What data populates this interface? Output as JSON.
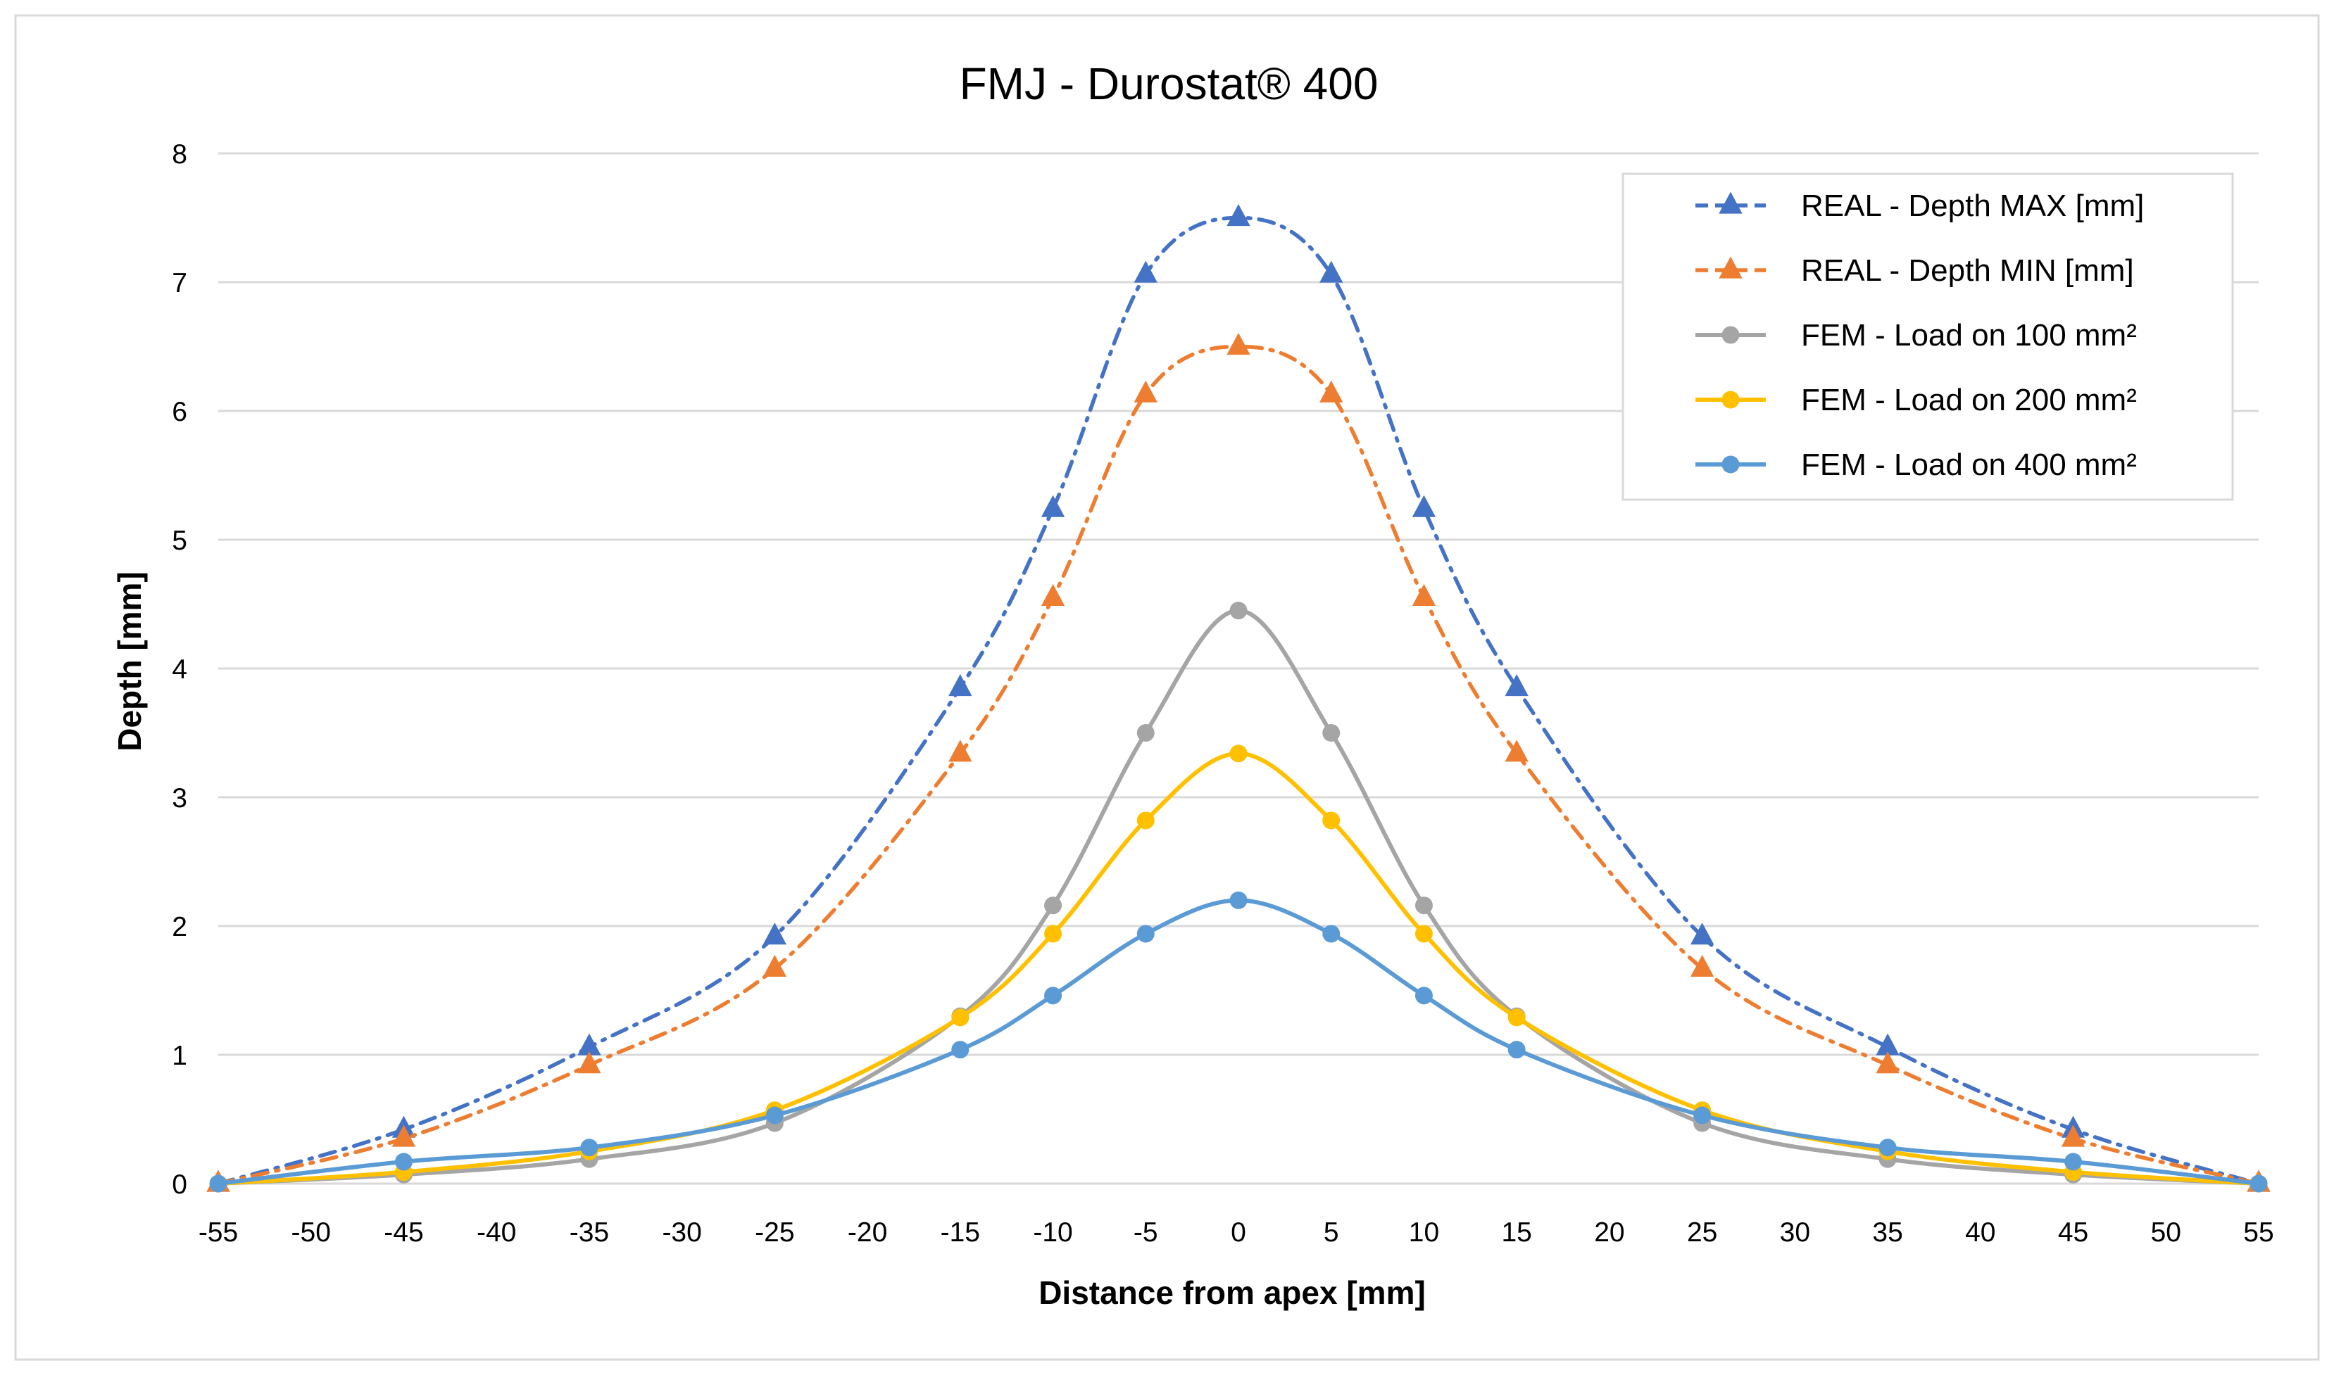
{
  "chart_data": {
    "type": "line",
    "title": "FMJ - Durostat® 400",
    "xlabel": "Distance from apex [mm]",
    "ylabel": "Depth [mm]",
    "xlim": [
      -55,
      55
    ],
    "ylim": [
      0,
      8
    ],
    "x_ticks": [
      "-55",
      "-50",
      "-45",
      "-40",
      "-35",
      "-30",
      "-25",
      "-20",
      "-15",
      "-10",
      "-5",
      "0",
      "5",
      "10",
      "15",
      "20",
      "25",
      "30",
      "35",
      "40",
      "45",
      "50",
      "55"
    ],
    "y_ticks": [
      "0",
      "1",
      "2",
      "3",
      "4",
      "5",
      "6",
      "7",
      "8"
    ],
    "grid": "horizontal",
    "legend_position": "top-right",
    "x": [
      -55,
      -45,
      -35,
      -25,
      -15,
      -10,
      -5,
      0,
      5,
      10,
      15,
      25,
      35,
      45,
      55
    ],
    "series": [
      {
        "name": "REAL - Depth MAX [mm]",
        "marker": "triangle",
        "line_style": "dash-dot",
        "color": "#4472C4",
        "values": [
          0,
          0.42,
          1.06,
          1.92,
          3.85,
          5.24,
          7.06,
          7.5,
          7.06,
          5.24,
          3.85,
          1.92,
          1.06,
          0.42,
          0
        ]
      },
      {
        "name": "REAL - Depth MIN [mm]",
        "marker": "triangle",
        "line_style": "dash-dot",
        "color": "#ED7D31",
        "values": [
          0,
          0.35,
          0.92,
          1.67,
          3.34,
          4.55,
          6.13,
          6.5,
          6.13,
          4.55,
          3.34,
          1.67,
          0.92,
          0.35,
          0
        ]
      },
      {
        "name": "FEM - Load on 100 mm²",
        "marker": "circle",
        "line_style": "solid",
        "color": "#A5A5A5",
        "values": [
          0,
          0.07,
          0.19,
          0.47,
          1.3,
          2.16,
          3.5,
          4.45,
          3.5,
          2.16,
          1.3,
          0.47,
          0.19,
          0.07,
          0
        ]
      },
      {
        "name": "FEM - Load on 200 mm²",
        "marker": "circle",
        "line_style": "solid",
        "color": "#FFC000",
        "values": [
          0,
          0.09,
          0.25,
          0.57,
          1.29,
          1.94,
          2.82,
          3.34,
          2.82,
          1.94,
          1.29,
          0.57,
          0.25,
          0.09,
          0
        ]
      },
      {
        "name": "FEM - Load on 400 mm²",
        "marker": "circle",
        "line_style": "solid",
        "color": "#5B9BD5",
        "values": [
          0,
          0.17,
          0.28,
          0.53,
          1.04,
          1.46,
          1.94,
          2.2,
          1.94,
          1.46,
          1.04,
          0.53,
          0.28,
          0.17,
          0
        ]
      }
    ]
  }
}
